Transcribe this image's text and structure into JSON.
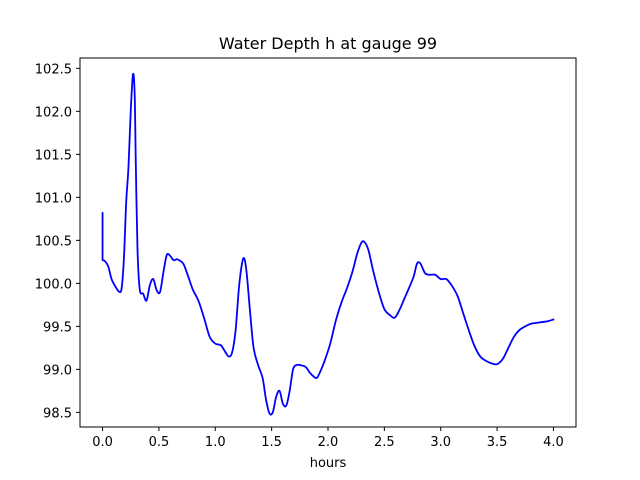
{
  "chart_data": {
    "type": "line",
    "title": "Water Depth h at gauge 99",
    "xlabel": "hours",
    "ylabel": "",
    "xlim": [
      -0.2,
      4.2
    ],
    "ylim": [
      98.33,
      102.62
    ],
    "xticks": [
      0.0,
      0.5,
      1.0,
      1.5,
      2.0,
      2.5,
      3.0,
      3.5,
      4.0
    ],
    "xtick_labels": [
      "0.0",
      "0.5",
      "1.0",
      "1.5",
      "2.0",
      "2.5",
      "3.0",
      "3.5",
      "4.0"
    ],
    "yticks": [
      98.5,
      99.0,
      99.5,
      100.0,
      100.5,
      101.0,
      101.5,
      102.0,
      102.5
    ],
    "ytick_labels": [
      "98.5",
      "99.0",
      "99.5",
      "100.0",
      "100.5",
      "101.0",
      "101.5",
      "102.0",
      "102.5"
    ],
    "grid": false,
    "series": [
      {
        "color": "#0000ff",
        "x": [
          0.0,
          0.0,
          0.02,
          0.05,
          0.08,
          0.12,
          0.15,
          0.17,
          0.19,
          0.21,
          0.23,
          0.25,
          0.27,
          0.285,
          0.295,
          0.31,
          0.33,
          0.36,
          0.39,
          0.42,
          0.45,
          0.48,
          0.51,
          0.54,
          0.57,
          0.6,
          0.63,
          0.66,
          0.69,
          0.72,
          0.76,
          0.8,
          0.85,
          0.9,
          0.95,
          1.0,
          1.05,
          1.09,
          1.12,
          1.15,
          1.18,
          1.21,
          1.24,
          1.26,
          1.28,
          1.31,
          1.34,
          1.38,
          1.42,
          1.45,
          1.48,
          1.51,
          1.54,
          1.57,
          1.6,
          1.63,
          1.66,
          1.69,
          1.72,
          1.75,
          1.8,
          1.84,
          1.87,
          1.9,
          1.93,
          1.97,
          2.02,
          2.07,
          2.12,
          2.17,
          2.22,
          2.26,
          2.3,
          2.33,
          2.36,
          2.4,
          2.45,
          2.5,
          2.55,
          2.59,
          2.63,
          2.68,
          2.72,
          2.76,
          2.79,
          2.82,
          2.86,
          2.9,
          2.95,
          3.0,
          3.05,
          3.1,
          3.15,
          3.2,
          3.25,
          3.3,
          3.35,
          3.4,
          3.45,
          3.5,
          3.55,
          3.6,
          3.65,
          3.7,
          3.75,
          3.8,
          3.85,
          3.9,
          3.95,
          4.0
        ],
        "y": [
          100.82,
          100.27,
          100.26,
          100.2,
          100.05,
          99.95,
          99.9,
          99.95,
          100.3,
          100.95,
          101.35,
          102.0,
          102.43,
          102.2,
          101.4,
          100.4,
          99.93,
          99.88,
          99.8,
          99.98,
          100.05,
          99.92,
          99.9,
          100.13,
          100.33,
          100.32,
          100.27,
          100.28,
          100.26,
          100.22,
          100.08,
          99.93,
          99.8,
          99.6,
          99.38,
          99.3,
          99.28,
          99.2,
          99.15,
          99.2,
          99.45,
          99.95,
          100.25,
          100.28,
          100.1,
          99.65,
          99.25,
          99.05,
          98.9,
          98.65,
          98.49,
          98.5,
          98.68,
          98.75,
          98.6,
          98.58,
          98.75,
          99.0,
          99.05,
          99.05,
          99.03,
          98.96,
          98.92,
          98.9,
          98.97,
          99.1,
          99.3,
          99.57,
          99.78,
          99.95,
          100.15,
          100.35,
          100.48,
          100.47,
          100.38,
          100.15,
          99.9,
          99.7,
          99.63,
          99.6,
          99.68,
          99.83,
          99.95,
          100.08,
          100.23,
          100.23,
          100.12,
          100.1,
          100.1,
          100.05,
          100.05,
          99.97,
          99.85,
          99.65,
          99.45,
          99.27,
          99.15,
          99.1,
          99.07,
          99.06,
          99.12,
          99.25,
          99.38,
          99.46,
          99.5,
          99.53,
          99.54,
          99.55,
          99.56,
          99.58
        ]
      }
    ]
  }
}
